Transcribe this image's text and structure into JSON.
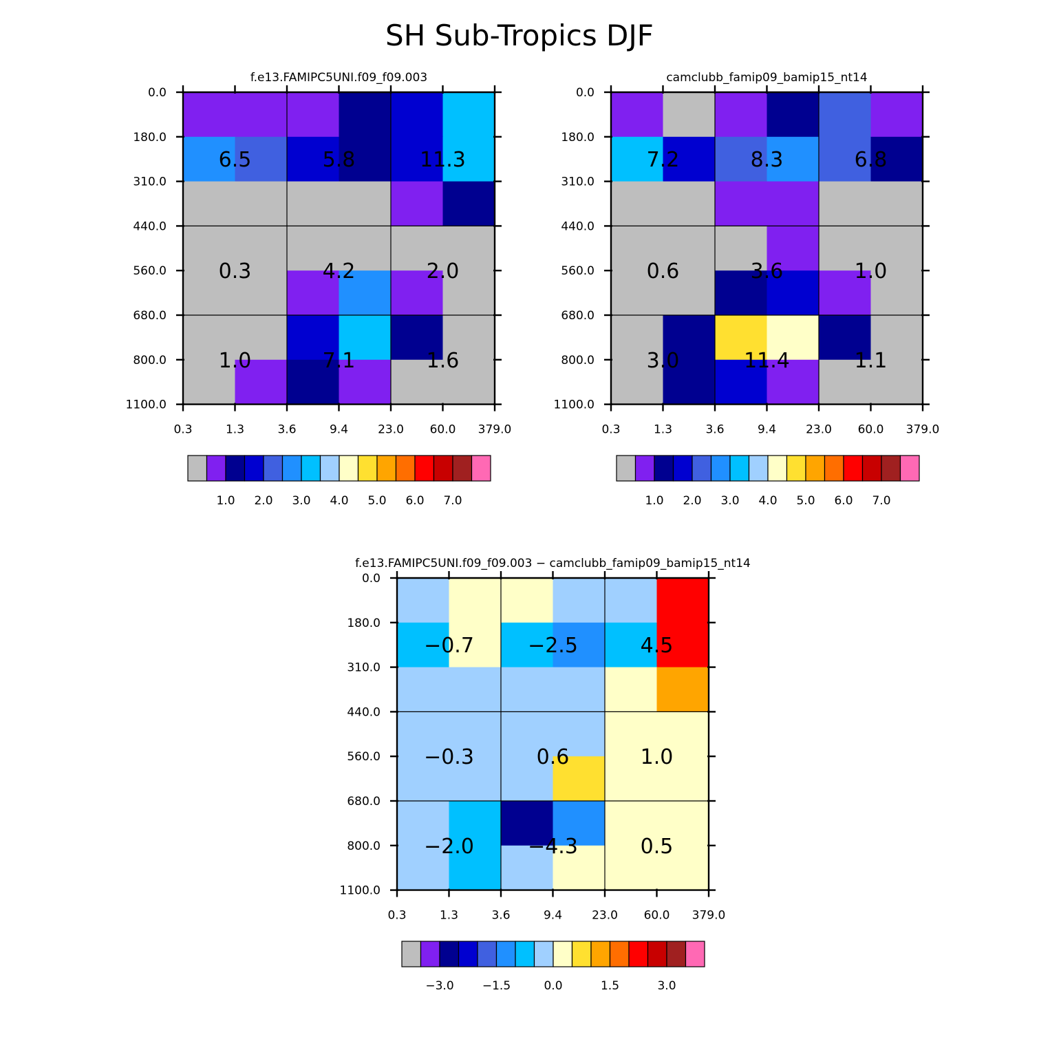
{
  "chart_data": {
    "type": "heatmap",
    "title": "SH Sub-Tropics DJF",
    "y_ticks": [
      "0.0",
      "180.0",
      "310.0",
      "440.0",
      "560.0",
      "680.0",
      "800.0",
      "1100.0"
    ],
    "x_ticks": [
      "0.3",
      "1.3",
      "3.6",
      "9.4",
      "23.0",
      "60.0",
      "379.0"
    ],
    "panels": [
      {
        "title": "f.e13.FAMIPC5UNI.f09_f09.003",
        "cells": [
          [
            "#8020F0",
            "#8020F0",
            "#8020F0",
            "#000090",
            "#0000D0",
            "#00C0FF"
          ],
          [
            "#2090FF",
            "#4060E0",
            "#0000D0",
            "#000090",
            "#0000D0",
            "#00C0FF"
          ],
          [
            "#BEBEBE",
            "#BEBEBE",
            "#BEBEBE",
            "#BEBEBE",
            "#8020F0",
            "#000090"
          ],
          [
            "#BEBEBE",
            "#BEBEBE",
            "#BEBEBE",
            "#BEBEBE",
            "#BEBEBE",
            "#BEBEBE"
          ],
          [
            "#BEBEBE",
            "#BEBEBE",
            "#8020F0",
            "#2090FF",
            "#8020F0",
            "#BEBEBE"
          ],
          [
            "#BEBEBE",
            "#BEBEBE",
            "#0000D0",
            "#00C0FF",
            "#000090",
            "#BEBEBE"
          ],
          [
            "#BEBEBE",
            "#8020F0",
            "#000090",
            "#8020F0",
            "#BEBEBE",
            "#BEBEBE"
          ]
        ],
        "values": [
          [
            "6.5",
            "5.8",
            "11.3"
          ],
          [
            "0.3",
            "4.2",
            "2.0"
          ],
          [
            "1.0",
            "7.1",
            "1.6"
          ]
        ],
        "colorbar_labels": [
          "1.0",
          "2.0",
          "3.0",
          "4.0",
          "5.0",
          "6.0",
          "7.0"
        ]
      },
      {
        "title": "camclubb_famip09_bamip15_nt14",
        "cells": [
          [
            "#8020F0",
            "#BEBEBE",
            "#8020F0",
            "#000090",
            "#4060E0",
            "#8020F0"
          ],
          [
            "#00C0FF",
            "#0000D0",
            "#4060E0",
            "#2090FF",
            "#4060E0",
            "#000090"
          ],
          [
            "#BEBEBE",
            "#BEBEBE",
            "#8020F0",
            "#8020F0",
            "#BEBEBE",
            "#BEBEBE"
          ],
          [
            "#BEBEBE",
            "#BEBEBE",
            "#BEBEBE",
            "#8020F0",
            "#BEBEBE",
            "#BEBEBE"
          ],
          [
            "#BEBEBE",
            "#BEBEBE",
            "#000090",
            "#0000D0",
            "#8020F0",
            "#BEBEBE"
          ],
          [
            "#BEBEBE",
            "#000090",
            "#FFE030",
            "#FFFFC8",
            "#000090",
            "#BEBEBE"
          ],
          [
            "#BEBEBE",
            "#000090",
            "#0000D0",
            "#8020F0",
            "#BEBEBE",
            "#BEBEBE"
          ]
        ],
        "values": [
          [
            "7.2",
            "8.3",
            "6.8"
          ],
          [
            "0.6",
            "3.6",
            "1.0"
          ],
          [
            "3.0",
            "11.4",
            "1.1"
          ]
        ],
        "colorbar_labels": [
          "1.0",
          "2.0",
          "3.0",
          "4.0",
          "5.0",
          "6.0",
          "7.0"
        ]
      },
      {
        "title": "f.e13.FAMIPC5UNI.f09_f09.003 − camclubb_famip09_bamip15_nt14",
        "cells": [
          [
            "#A0D0FF",
            "#FFFFC8",
            "#FFFFC8",
            "#A0D0FF",
            "#A0D0FF",
            "#FF0000"
          ],
          [
            "#00C0FF",
            "#FFFFC8",
            "#00C0FF",
            "#2090FF",
            "#00C0FF",
            "#FF0000"
          ],
          [
            "#A0D0FF",
            "#A0D0FF",
            "#A0D0FF",
            "#A0D0FF",
            "#FFFFC8",
            "#FFA500"
          ],
          [
            "#A0D0FF",
            "#A0D0FF",
            "#A0D0FF",
            "#A0D0FF",
            "#FFFFC8",
            "#FFFFC8"
          ],
          [
            "#A0D0FF",
            "#A0D0FF",
            "#A0D0FF",
            "#FFE030",
            "#FFFFC8",
            "#FFFFC8"
          ],
          [
            "#A0D0FF",
            "#00C0FF",
            "#000090",
            "#2090FF",
            "#FFFFC8",
            "#FFFFC8"
          ],
          [
            "#A0D0FF",
            "#00C0FF",
            "#A0D0FF",
            "#FFFFC8",
            "#FFFFC8",
            "#FFFFC8"
          ]
        ],
        "values": [
          [
            "−0.7",
            "−2.5",
            "4.5"
          ],
          [
            "−0.3",
            "0.6",
            "1.0"
          ],
          [
            "−2.0",
            "−4.3",
            "0.5"
          ]
        ],
        "colorbar_labels": [
          "−3.0",
          "−1.5",
          "0.0",
          "1.5",
          "3.0"
        ]
      }
    ],
    "colorbar_colors": [
      "#BEBEBE",
      "#8020F0",
      "#000090",
      "#0000D0",
      "#4060E0",
      "#2090FF",
      "#00C0FF",
      "#A0D0FF",
      "#FFFFC8",
      "#FFE030",
      "#FFA500",
      "#FF6E00",
      "#FF0000",
      "#C80000",
      "#A02020",
      "#FF69B4"
    ]
  }
}
